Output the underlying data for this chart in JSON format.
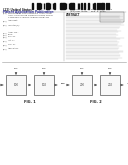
{
  "bg_color": "#ffffff",
  "barcode_color": "#111111",
  "header_dark": "#222222",
  "header_blue": "#333399",
  "text_gray": "#888888",
  "text_dark": "#444444",
  "box_edge": "#555555",
  "box_face": "#f8f8f8",
  "line_color": "#999999",
  "fig1_label": "FIG. 1",
  "fig2_label": "FIG. 2",
  "fig1_box_labels": [
    "100",
    "102"
  ],
  "fig2_box_labels": [
    "200",
    "202"
  ],
  "fig1_arrow_labels": [
    "104",
    "106",
    "108",
    "110"
  ],
  "fig2_arrow_labels": [
    "204",
    "206",
    "208",
    "210"
  ]
}
